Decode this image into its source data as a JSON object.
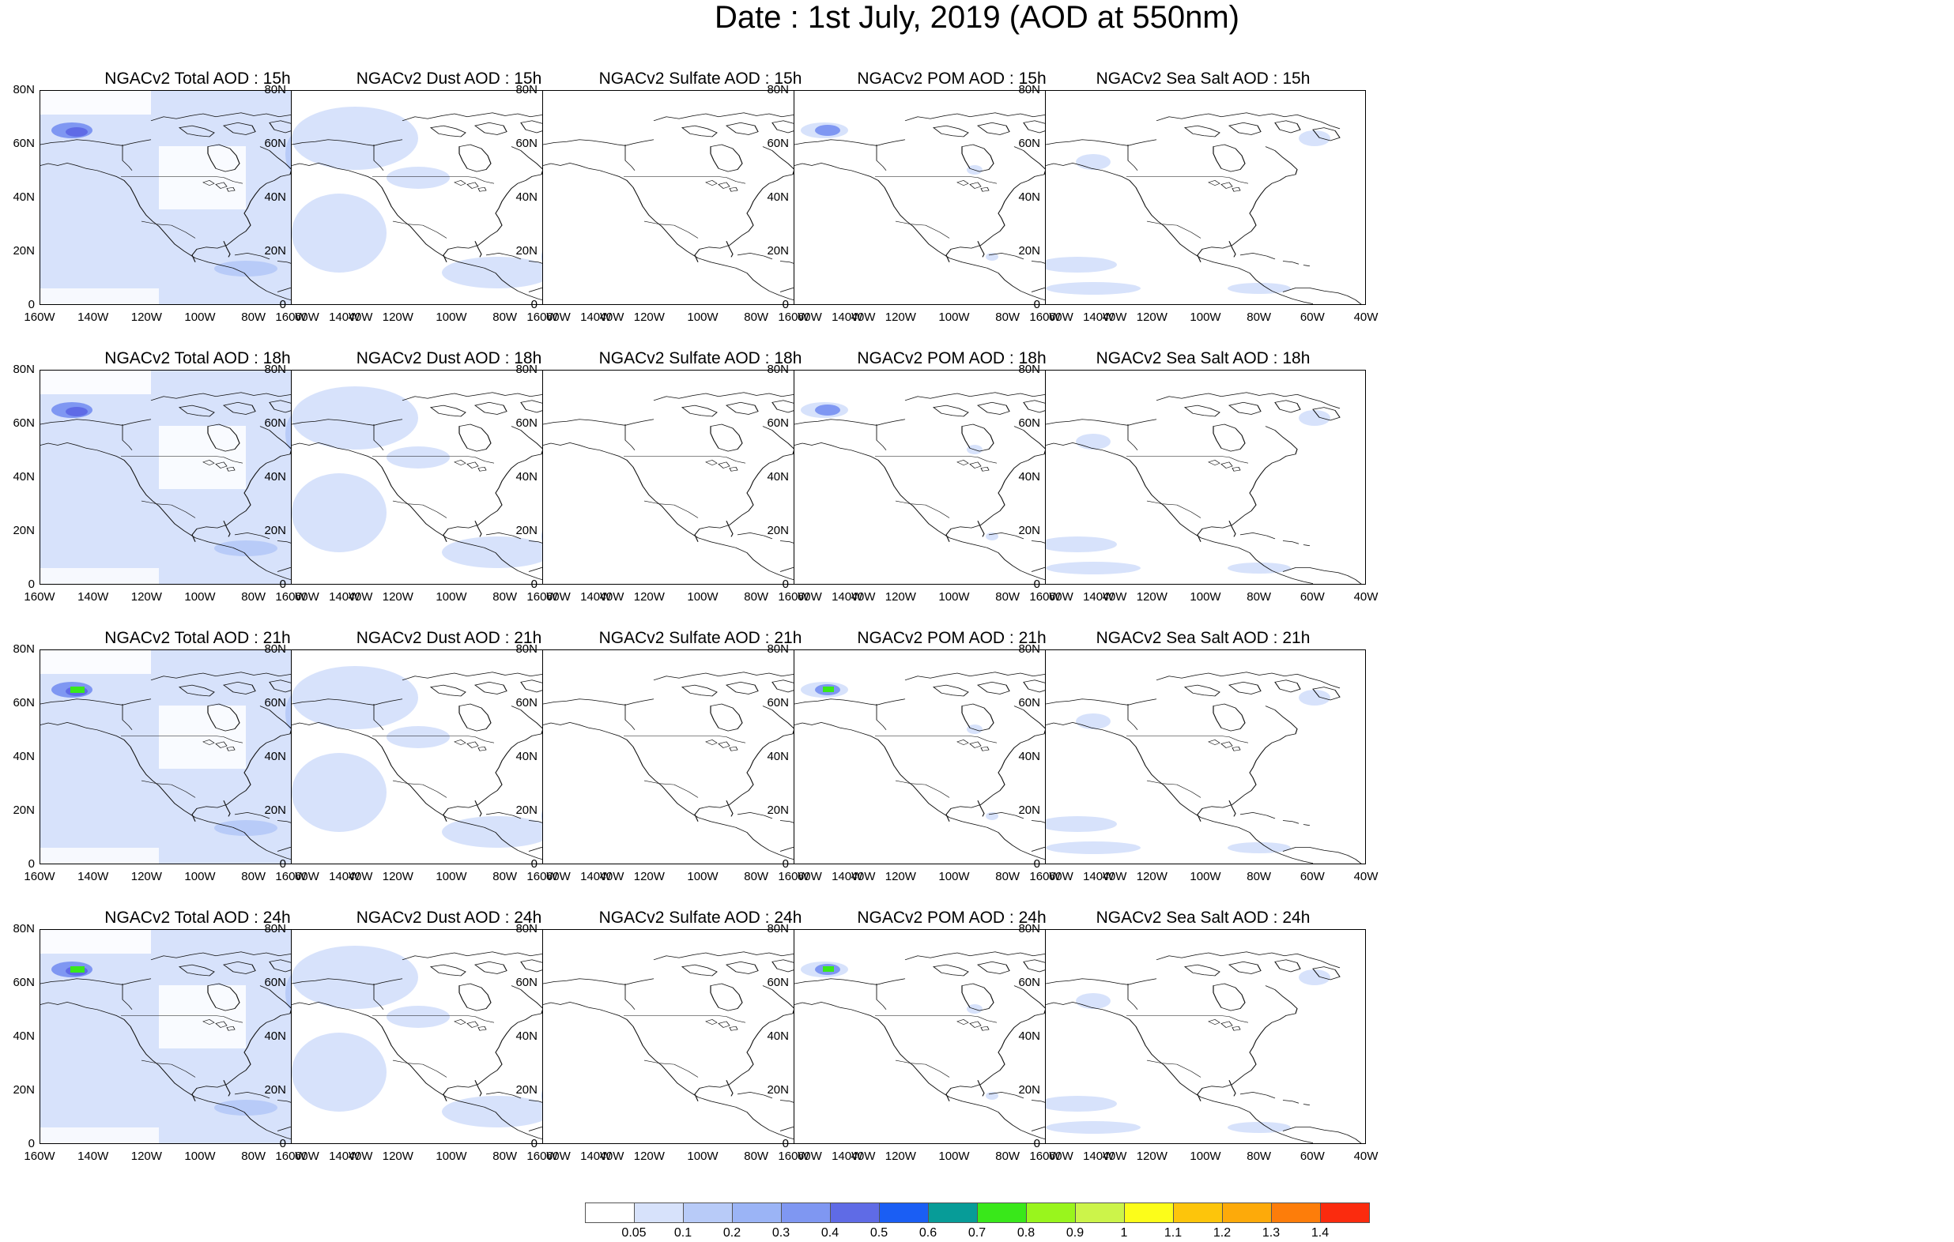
{
  "title": "Date : 1st July, 2019 (AOD at 550nm)",
  "panels": [
    {
      "title": "NGACv2 Total AOD : 15h",
      "species": "total"
    },
    {
      "title": "NGACv2 Dust AOD : 15h",
      "species": "dust"
    },
    {
      "title": "NGACv2 Sulfate AOD : 15h",
      "species": "sulfate"
    },
    {
      "title": "NGACv2 POM AOD : 15h",
      "species": "pom"
    },
    {
      "title": "NGACv2 Sea Salt AOD : 15h",
      "species": "seasalt"
    },
    {
      "title": "NGACv2 Total AOD : 18h",
      "species": "total"
    },
    {
      "title": "NGACv2 Dust AOD : 18h",
      "species": "dust"
    },
    {
      "title": "NGACv2 Sulfate AOD : 18h",
      "species": "sulfate"
    },
    {
      "title": "NGACv2 POM AOD : 18h",
      "species": "pom"
    },
    {
      "title": "NGACv2 Sea Salt AOD : 18h",
      "species": "seasalt"
    },
    {
      "title": "NGACv2 Total AOD : 21h",
      "species": "total"
    },
    {
      "title": "NGACv2 Dust AOD : 21h",
      "species": "dust"
    },
    {
      "title": "NGACv2 Sulfate AOD : 21h",
      "species": "sulfate"
    },
    {
      "title": "NGACv2 POM AOD : 21h",
      "species": "pom"
    },
    {
      "title": "NGACv2 Sea Salt AOD : 21h",
      "species": "seasalt"
    },
    {
      "title": "NGACv2 Total AOD : 24h",
      "species": "total"
    },
    {
      "title": "NGACv2 Dust AOD : 24h",
      "species": "dust"
    },
    {
      "title": "NGACv2 Sulfate AOD : 24h",
      "species": "sulfate"
    },
    {
      "title": "NGACv2 POM AOD : 24h",
      "species": "pom"
    },
    {
      "title": "NGACv2 Sea Salt  AOD : 24h",
      "species": "seasalt"
    }
  ],
  "y_ticks": [
    "80N",
    "60N",
    "40N",
    "20N",
    "0"
  ],
  "x_ticks": [
    "160W",
    "140W",
    "120W",
    "100W",
    "80W",
    "60W",
    "40W"
  ],
  "colorbar": {
    "colors": [
      "#ffffff",
      "#d7e2fb",
      "#b8cbf8",
      "#9bb4f6",
      "#7f97f2",
      "#5f6be6",
      "#1a5ef4",
      "#079c98",
      "#39e81a",
      "#99f51d",
      "#ccf44a",
      "#fcfd1a",
      "#fdc50b",
      "#fdaa0a",
      "#fd7d0a",
      "#fb2b0e"
    ],
    "labels": [
      "0.05",
      "0.1",
      "0.2",
      "0.3",
      "0.4",
      "0.5",
      "0.6",
      "0.7",
      "0.8",
      "0.9",
      "1",
      "1.1",
      "1.2",
      "1.3",
      "1.4"
    ]
  },
  "shade_colors": {
    "light": "#d7e2fb",
    "mid": "#b8cbf8",
    "deep": "#9bb4f6",
    "strong": "#7f97f2",
    "green": "#39e81a"
  }
}
